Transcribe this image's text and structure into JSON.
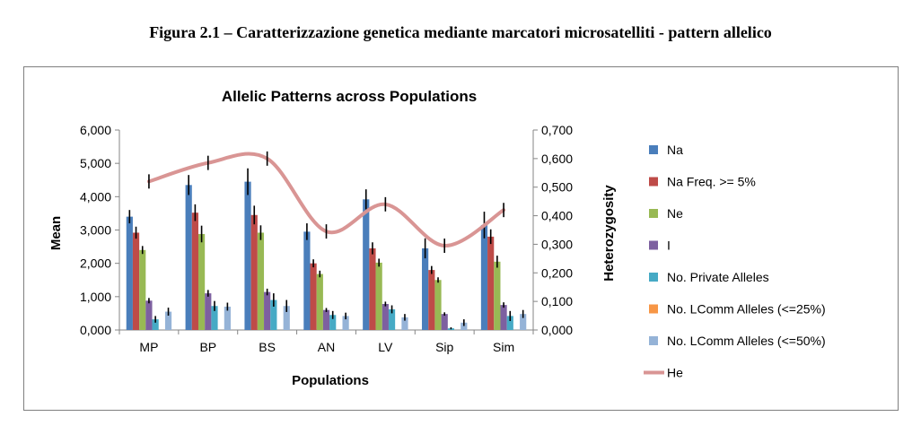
{
  "caption": "Figura 2.1 – Caratterizzazione genetica mediante marcatori microsatelliti - pattern allelico",
  "chart_data": {
    "type": "bar",
    "title": "Allelic Patterns across Populations",
    "xlabel": "Populations",
    "ylabel": "Mean",
    "y2label": "Heterozygosity",
    "categories": [
      "MP",
      "BP",
      "BS",
      "AN",
      "LV",
      "Sip",
      "Sim"
    ],
    "ylim": [
      0,
      6
    ],
    "y2lim": [
      0,
      0.7
    ],
    "yticks": [
      "0,000",
      "1,000",
      "2,000",
      "3,000",
      "4,000",
      "5,000",
      "6,000"
    ],
    "y2ticks": [
      "0,000",
      "0,100",
      "0,200",
      "0,300",
      "0,400",
      "0,500",
      "0,600",
      "0,700"
    ],
    "legend_position": "right",
    "series": [
      {
        "name": "Na",
        "color": "#4a7ebb",
        "values": [
          3.4,
          4.35,
          4.45,
          2.95,
          3.92,
          2.45,
          3.15
        ],
        "errors": [
          0.2,
          0.3,
          0.4,
          0.25,
          0.3,
          0.3,
          0.4
        ]
      },
      {
        "name": "Na Freq. >= 5%",
        "color": "#be4b48",
        "values": [
          2.92,
          3.52,
          3.45,
          2.0,
          2.45,
          1.8,
          2.8
        ],
        "errors": [
          0.18,
          0.25,
          0.28,
          0.12,
          0.18,
          0.12,
          0.22
        ]
      },
      {
        "name": "Ne",
        "color": "#98b954",
        "values": [
          2.4,
          2.88,
          2.92,
          1.68,
          2.02,
          1.5,
          2.05
        ],
        "errors": [
          0.12,
          0.25,
          0.22,
          0.1,
          0.12,
          0.08,
          0.18
        ]
      },
      {
        "name": "I",
        "color": "#7d60a0",
        "values": [
          0.88,
          1.1,
          1.14,
          0.6,
          0.78,
          0.48,
          0.75
        ],
        "errors": [
          0.08,
          0.1,
          0.1,
          0.06,
          0.07,
          0.05,
          0.08
        ]
      },
      {
        "name": "No. Private Alleles",
        "color": "#46aac5",
        "values": [
          0.32,
          0.72,
          0.9,
          0.45,
          0.62,
          0.05,
          0.42
        ],
        "errors": [
          0.1,
          0.15,
          0.2,
          0.12,
          0.12,
          0.03,
          0.15
        ]
      },
      {
        "name": "No. LComm Alleles (<=25%)",
        "color": "#f79646",
        "values": [
          0,
          0,
          0,
          0,
          0,
          0,
          0
        ],
        "errors": [
          0,
          0,
          0,
          0,
          0,
          0,
          0
        ]
      },
      {
        "name": "No. LComm Alleles (<=50%)",
        "color": "#95b3d7",
        "values": [
          0.55,
          0.7,
          0.72,
          0.42,
          0.38,
          0.22,
          0.48
        ],
        "errors": [
          0.12,
          0.12,
          0.18,
          0.1,
          0.1,
          0.1,
          0.12
        ]
      }
    ],
    "line_series": {
      "name": "He",
      "axis": "secondary",
      "color": "#d99594",
      "values": [
        0.52,
        0.585,
        0.6,
        0.345,
        0.44,
        0.295,
        0.42
      ],
      "errors": [
        0.025,
        0.025,
        0.025,
        0.025,
        0.025,
        0.025,
        0.025
      ]
    }
  }
}
